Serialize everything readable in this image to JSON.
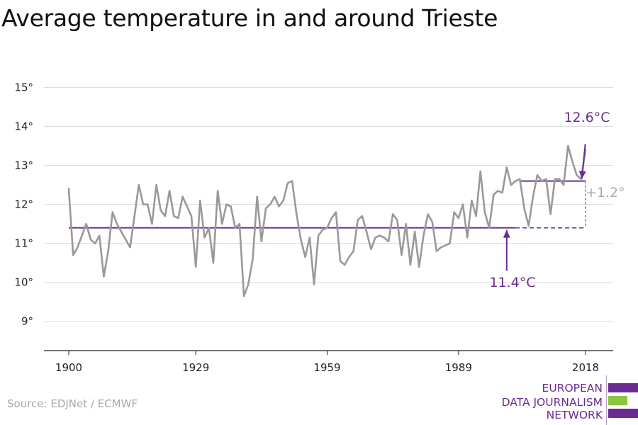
{
  "title": "Average temperature in and around Trieste",
  "source": "Source: EDJNet / ECMWF",
  "logo": {
    "lines": [
      "EUROPEAN",
      "DATA JOURNALISM",
      "NETWORK"
    ],
    "colors": [
      "#6a2c91",
      "#8dc63f",
      "#6a2c91"
    ]
  },
  "chart_data": {
    "type": "line",
    "title": "Average temperature in and around Trieste",
    "xlabel": "",
    "ylabel": "",
    "xlim": [
      1900,
      2018
    ],
    "ylim": [
      8.25,
      15.5
    ],
    "x_ticks": [
      1900,
      1929,
      1959,
      1989,
      2018
    ],
    "y_ticks": [
      9,
      10,
      11,
      12,
      13,
      14,
      15
    ],
    "y_tick_suffix": "°",
    "grid": true,
    "colors": {
      "series": "#999999",
      "reference": "#6a2c91",
      "difference": "#999999"
    },
    "series": [
      {
        "x": [
          1900,
          1901,
          1902,
          1903,
          1904,
          1905,
          1906,
          1907,
          1908,
          1909,
          1910,
          1911,
          1912,
          1913,
          1914,
          1915,
          1916,
          1917,
          1918,
          1919,
          1920,
          1921,
          1922,
          1923,
          1924,
          1925,
          1926,
          1927,
          1928,
          1929,
          1930,
          1931,
          1932,
          1933,
          1934,
          1935,
          1936,
          1937,
          1938,
          1939,
          1940,
          1941,
          1942,
          1943,
          1944,
          1945,
          1946,
          1947,
          1948,
          1949,
          1950,
          1951,
          1952,
          1953,
          1954,
          1955,
          1956,
          1957,
          1958,
          1959,
          1960,
          1961,
          1962,
          1963,
          1964,
          1965,
          1966,
          1967,
          1968,
          1969,
          1970,
          1971,
          1972,
          1973,
          1974,
          1975,
          1976,
          1977,
          1978,
          1979,
          1980,
          1981,
          1982,
          1983,
          1984,
          1985,
          1986,
          1987,
          1988,
          1989,
          1990,
          1991,
          1992,
          1993,
          1994,
          1995,
          1996,
          1997,
          1998,
          1999,
          2000,
          2001,
          2002,
          2003,
          2004,
          2005,
          2006,
          2007,
          2008,
          2009,
          2010,
          2011,
          2012,
          2013,
          2014,
          2015,
          2016,
          2017,
          2018
        ],
        "values": [
          12.4,
          10.7,
          10.9,
          11.2,
          11.5,
          11.1,
          11.0,
          11.2,
          10.15,
          10.8,
          11.8,
          11.5,
          11.3,
          11.1,
          10.9,
          11.7,
          12.5,
          12.0,
          12.0,
          11.5,
          12.5,
          11.85,
          11.7,
          12.35,
          11.7,
          11.65,
          12.2,
          11.95,
          11.7,
          10.4,
          12.1,
          11.15,
          11.4,
          10.5,
          12.35,
          11.5,
          12.0,
          11.95,
          11.4,
          11.5,
          9.65,
          9.95,
          10.6,
          12.2,
          11.05,
          11.9,
          12.0,
          12.2,
          11.95,
          12.1,
          12.55,
          12.6,
          11.75,
          11.1,
          10.65,
          11.15,
          9.95,
          11.2,
          11.35,
          11.4,
          11.65,
          11.8,
          10.55,
          10.45,
          10.65,
          10.8,
          11.6,
          11.7,
          11.3,
          10.85,
          11.15,
          11.2,
          11.15,
          11.05,
          11.75,
          11.6,
          10.7,
          11.5,
          10.45,
          11.3,
          10.4,
          11.2,
          11.75,
          11.55,
          10.8,
          10.9,
          10.95,
          11.0,
          11.8,
          11.65,
          12.0,
          11.15,
          12.1,
          11.7,
          12.85,
          11.8,
          11.4,
          12.25,
          12.35,
          12.3,
          12.95,
          12.5,
          12.6,
          12.65,
          11.9,
          11.45,
          12.2,
          12.75,
          12.6,
          12.65,
          11.75,
          12.65,
          12.65,
          12.5,
          13.5,
          13.1,
          12.75,
          12.65,
          13.4
        ]
      }
    ],
    "annotations": [
      {
        "label": "11.4°C",
        "value": 11.4,
        "from": 1900,
        "to": 2018
      },
      {
        "label": "12.6°C",
        "value": 12.6,
        "from": 2003,
        "to": 2018
      },
      {
        "label": "+1.2°",
        "from_value": 11.4,
        "to_value": 12.6,
        "at": 2018
      }
    ]
  }
}
